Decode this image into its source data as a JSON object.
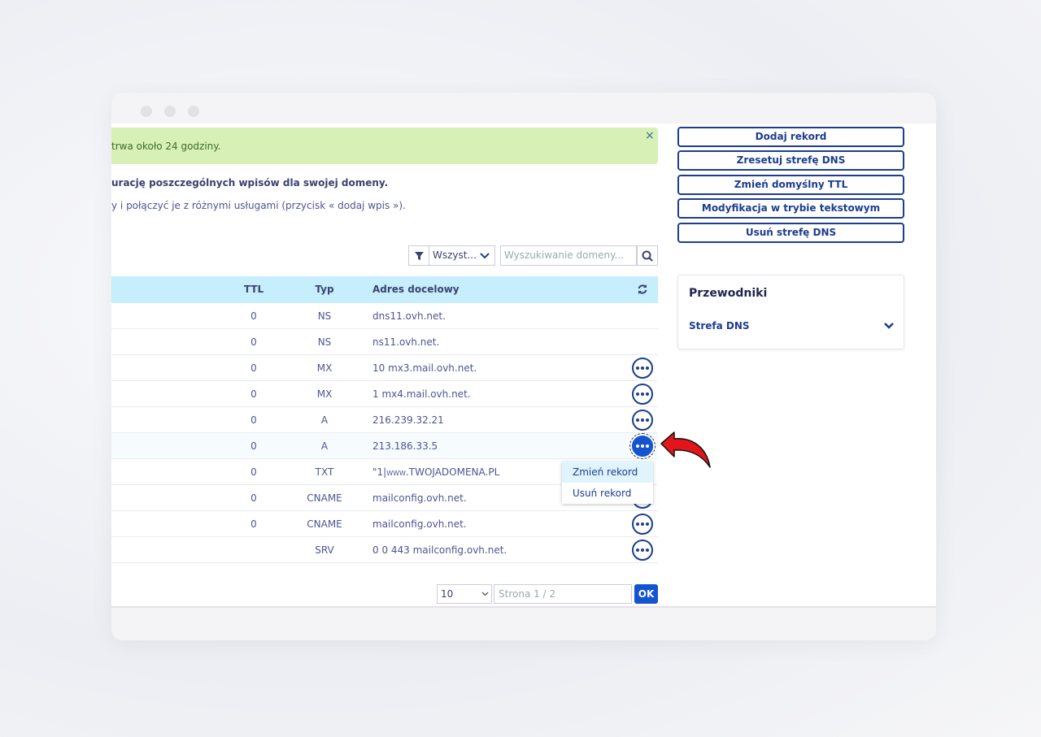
{
  "notice": {
    "text": "trwa około 24 godziny.",
    "close": "×"
  },
  "intro": {
    "line1": "urację poszczególnych wpisów dla swojej domeny.",
    "line2": "y i połączyć je z różnymi usługami (przycisk « dodaj wpis »)."
  },
  "filter": {
    "select": "Wszyst...",
    "search_placeholder": "Wyszukiwanie domeny..."
  },
  "table": {
    "columns": [
      "TTL",
      "Typ",
      "Adres docelowy"
    ],
    "rows": [
      [
        0,
        "NS",
        "dns11.ovh.net."
      ],
      [
        0,
        "NS",
        "ns11.ovh.net."
      ],
      [
        0,
        "MX",
        "10 mx3.mail.ovh.net."
      ],
      [
        0,
        "MX",
        "1 mx4.mail.ovh.net."
      ],
      [
        0,
        "A",
        "216.239.32.21"
      ],
      [
        0,
        "A",
        "213.186.33.5"
      ],
      [
        0,
        "TXT",
        "\"1|www.TWOJADOMENA.PL"
      ],
      [
        0,
        "CNAME",
        "mailconfig.ovh.net."
      ],
      [
        0,
        "CNAME",
        "mailconfig.ovh.net."
      ],
      [
        null,
        "SRV",
        "0 0 443 mailconfig.ovh.net."
      ]
    ]
  },
  "menu": {
    "items": [
      "Zmień rekord",
      "Usuń rekord"
    ]
  },
  "pagination": {
    "per_page": "10",
    "page": "Strona 1 / 2",
    "ok": "OK"
  },
  "actions": [
    "Dodaj rekord",
    "Zresetuj strefę DNS",
    "Zmień domyślny TTL",
    "Modyfikacja w trybie tekstowym",
    "Usuń strefę DNS"
  ],
  "guides": {
    "title": "Przewodniki",
    "item": "Strefa DNS"
  }
}
